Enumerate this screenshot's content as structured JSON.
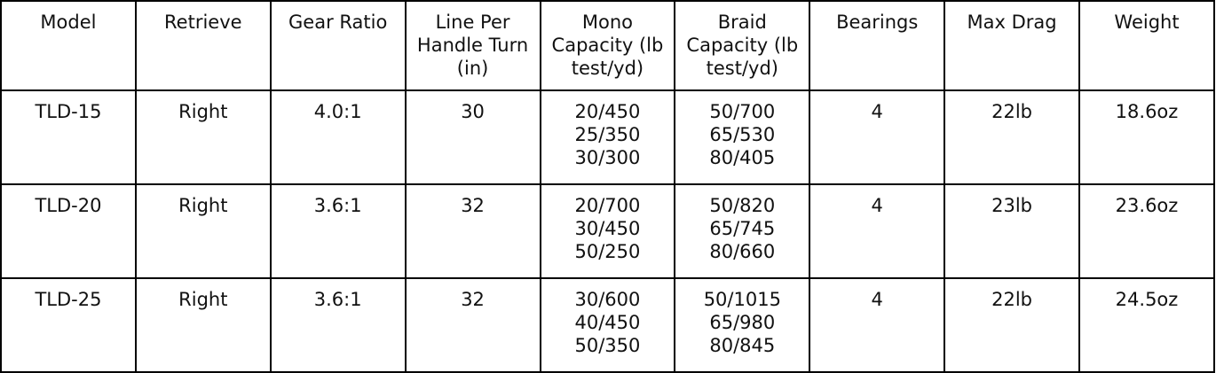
{
  "table": {
    "header": [
      "Model",
      "Retrieve",
      "Gear Ratio",
      "Line Per Handle Turn (in)",
      "Mono Capacity (lb test/yd)",
      "Braid Capacity (lb test/yd)",
      "Bearings",
      "Max Drag",
      "Weight"
    ],
    "rows": [
      [
        [
          "TLD-15"
        ],
        [
          "Right"
        ],
        [
          "4.0:1"
        ],
        [
          "30"
        ],
        [
          "20/450",
          "25/350",
          "30/300"
        ],
        [
          "50/700",
          "65/530",
          "80/405"
        ],
        [
          "4"
        ],
        [
          "22lb"
        ],
        [
          "18.6oz"
        ]
      ],
      [
        [
          "TLD-20"
        ],
        [
          "Right"
        ],
        [
          "3.6:1"
        ],
        [
          "32"
        ],
        [
          "20/700",
          "30/450",
          "50/250"
        ],
        [
          "50/820",
          "65/745",
          "80/660"
        ],
        [
          "4"
        ],
        [
          "23lb"
        ],
        [
          "23.6oz"
        ]
      ],
      [
        [
          "TLD-25"
        ],
        [
          "Right"
        ],
        [
          "3.6:1"
        ],
        [
          "32"
        ],
        [
          "30/600",
          "40/450",
          "50/350"
        ],
        [
          "50/1015",
          "65/980",
          "80/845"
        ],
        [
          "4"
        ],
        [
          "22lb"
        ],
        [
          "24.5oz"
        ]
      ]
    ]
  }
}
